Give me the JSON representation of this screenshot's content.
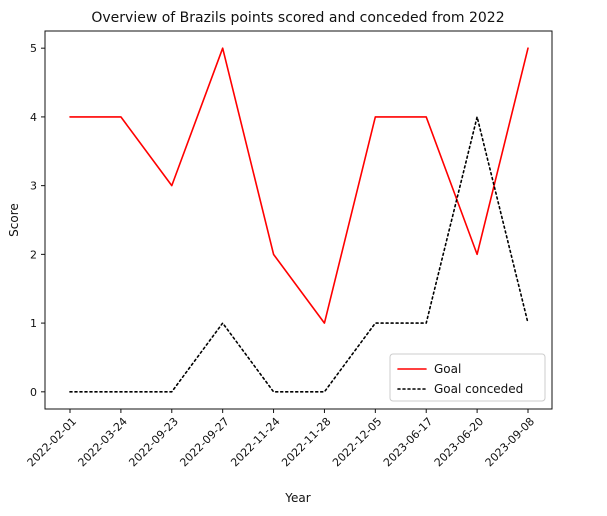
{
  "chart_data": {
    "type": "line",
    "title": "Overview of Brazils points scored and conceded from 2022",
    "xlabel": "Year",
    "ylabel": "Score",
    "categories": [
      "2022-02-01",
      "2022-03-24",
      "2022-09-23",
      "2022-09-27",
      "2022-11-24",
      "2022-11-28",
      "2022-12-05",
      "2023-06-17",
      "2023-06-20",
      "2023-09-08"
    ],
    "series": [
      {
        "name": "Goal",
        "values": [
          4,
          4,
          3,
          5,
          2,
          1,
          4,
          4,
          2,
          5
        ],
        "color": "#ff0000",
        "style": "solid"
      },
      {
        "name": "Goal conceded",
        "values": [
          0,
          0,
          0,
          1,
          0,
          0,
          1,
          1,
          4,
          1
        ],
        "color": "#000000",
        "style": "dotted"
      }
    ],
    "ylim": [
      -0.25,
      5.25
    ],
    "yticks": [
      0,
      1,
      2,
      3,
      4,
      5
    ],
    "grid": false,
    "legend_position": "lower-right"
  }
}
